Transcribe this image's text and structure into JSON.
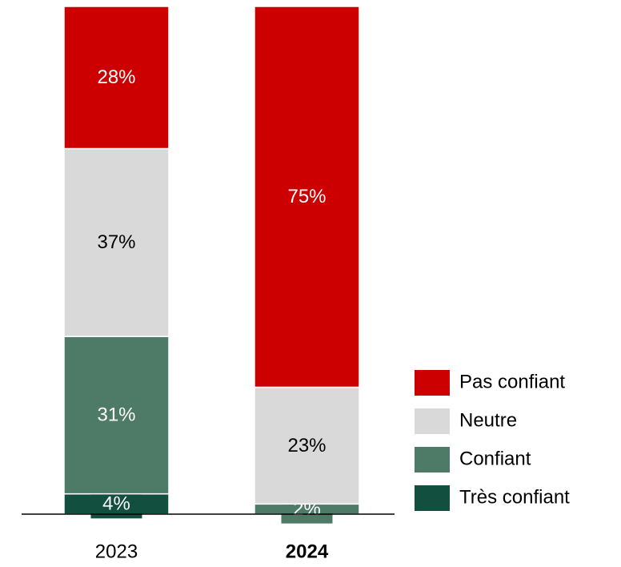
{
  "chart_data": {
    "type": "stacked_bar",
    "categories": [
      "2023",
      "2024"
    ],
    "series": [
      {
        "name": "Très confiant",
        "color": "#124f3f",
        "values": [
          4,
          0
        ],
        "value_labels": [
          "4%",
          null
        ]
      },
      {
        "name": "Confiant",
        "color": "#4e7b68",
        "values": [
          31,
          2
        ],
        "value_labels": [
          "31%",
          "2%"
        ]
      },
      {
        "name": "Neutre",
        "color": "#d9d9d9",
        "values": [
          37,
          23
        ],
        "value_labels": [
          "37%",
          "23%"
        ]
      },
      {
        "name": "Pas confiant",
        "color": "#cc0000",
        "values": [
          28,
          75
        ],
        "value_labels": [
          "28%",
          "75%"
        ]
      }
    ],
    "ylim": [
      0,
      100
    ],
    "legend": "right"
  }
}
